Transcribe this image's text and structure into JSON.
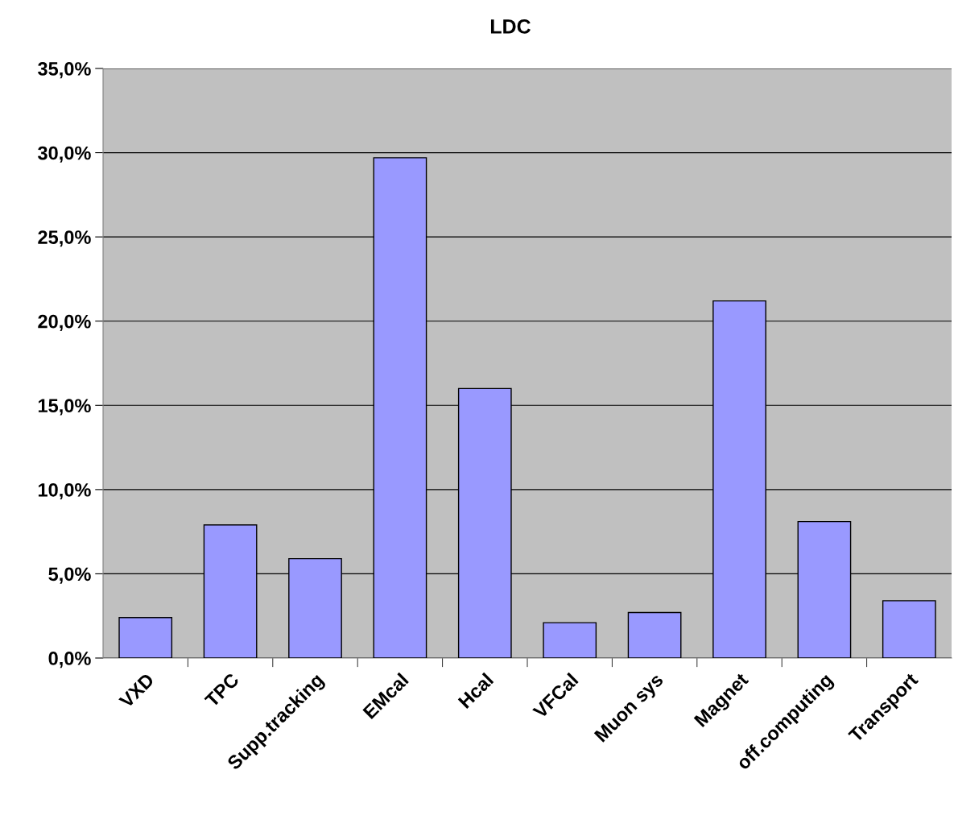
{
  "chart_data": {
    "type": "bar",
    "title": "LDC",
    "categories": [
      "VXD",
      "TPC",
      "Supp.tracking",
      "EMcal",
      "Hcal",
      "VFCal",
      "Muon sys",
      "Magnet",
      "off.computing",
      "Transport"
    ],
    "values": [
      2.4,
      7.9,
      5.9,
      29.7,
      16.0,
      2.1,
      2.7,
      21.2,
      8.1,
      3.4
    ],
    "color": "#9999ff",
    "ylim": [
      0,
      35
    ],
    "yticks": [
      {
        "value": 0,
        "label": "0,0%"
      },
      {
        "value": 5,
        "label": "5,0%"
      },
      {
        "value": 10,
        "label": "10,0%"
      },
      {
        "value": 15,
        "label": "15,0%"
      },
      {
        "value": 20,
        "label": "20,0%"
      },
      {
        "value": 25,
        "label": "25,0%"
      },
      {
        "value": 30,
        "label": "30,0%"
      },
      {
        "value": 35,
        "label": "35,0%"
      }
    ],
    "grid": "y",
    "legend": false
  }
}
